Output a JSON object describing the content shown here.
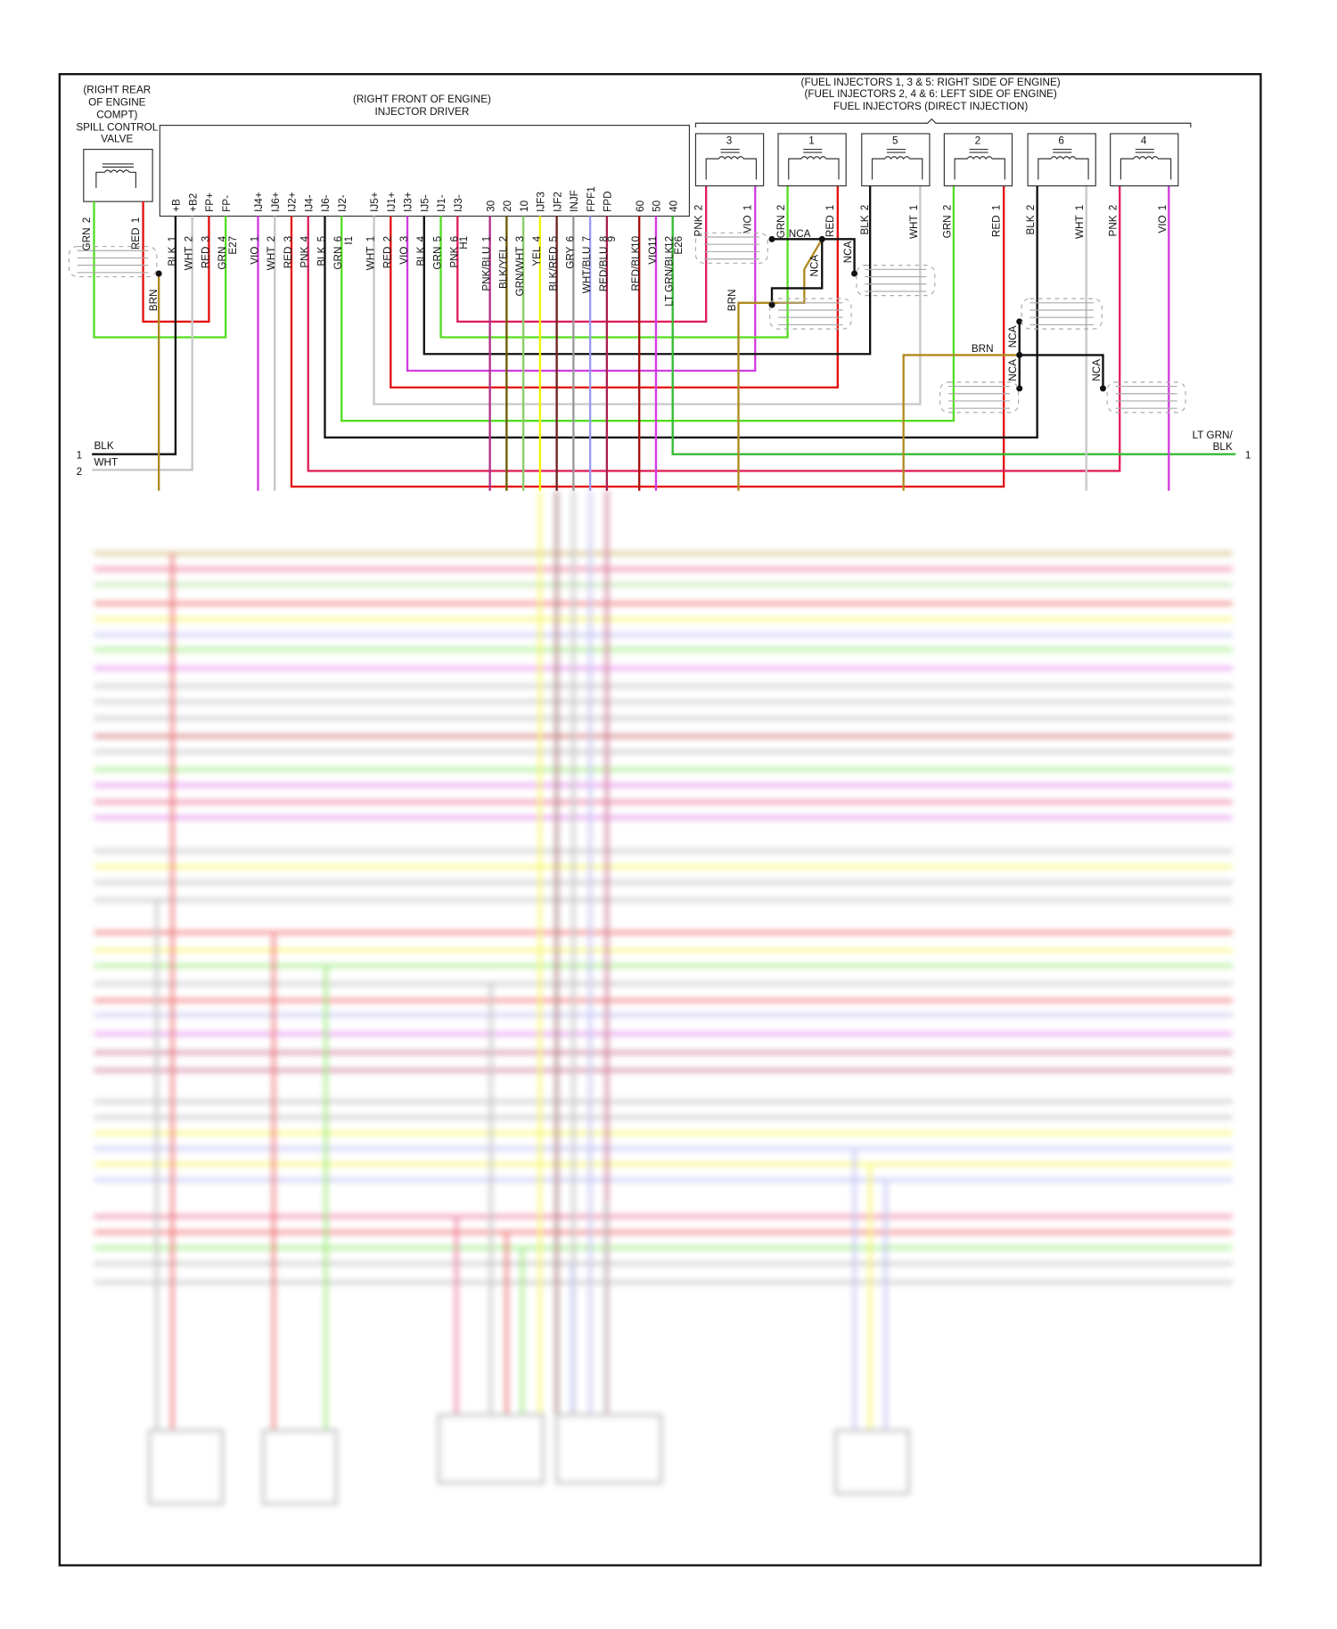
{
  "wire_colors": {
    "BLK": "#111111",
    "WHT": "#c8c8c8",
    "RED": "#e41010",
    "GRN": "#55dd22",
    "VIO": "#d23ce0",
    "PNK": "#e0205a",
    "BRN": "#b08a20",
    "YEL": "#f2f200",
    "LTGRNBLK": "#33bb33",
    "PNKBLU": "#b0308a",
    "BLKYEL": "#6b5a00",
    "GRNWHT": "#88cc66",
    "BLKRED": "#702020",
    "GRY": "#999999",
    "WHTBLU": "#9999ee",
    "REDBLU": "#aa2050",
    "REDBLK": "#aa1010"
  },
  "spill_valve": {
    "title": [
      "(RIGHT REAR",
      "OF ENGINE",
      "COMPT)",
      "SPILL CONTROL",
      "VALVE"
    ],
    "wires": [
      {
        "color": "GRN",
        "pin": "2"
      },
      {
        "color": "RED",
        "pin": "1"
      }
    ],
    "drain": "BRN"
  },
  "injector_driver": {
    "title": [
      "(RIGHT FRONT OF ENGINE)",
      "INJECTOR DRIVER"
    ],
    "pins": [
      "+B",
      "+B2",
      "FP+",
      "FP-",
      "IJ4+",
      "IJ6+",
      "IJ2+",
      "IJ4-",
      "IJ6-",
      "IJ2-",
      "IJ5+",
      "IJ1+",
      "IJ3+",
      "IJ5-",
      "IJ1-",
      "IJ3-",
      "30",
      "20",
      "10",
      "IJF3",
      "IJF2",
      "INJF",
      "FPF1",
      "FPD",
      "60",
      "50",
      "40"
    ],
    "wires": [
      {
        "color": "BLK",
        "pin": "1"
      },
      {
        "color": "WHT",
        "pin": "2"
      },
      {
        "color": "RED",
        "pin": "3"
      },
      {
        "color": "GRN",
        "pin": "4"
      },
      {
        "color": "",
        "pin": "E27"
      },
      {
        "color": "VIO",
        "pin": "1"
      },
      {
        "color": "WHT",
        "pin": "2"
      },
      {
        "color": "RED",
        "pin": "3"
      },
      {
        "color": "PNK",
        "pin": "4"
      },
      {
        "color": "BLK",
        "pin": "5"
      },
      {
        "color": "GRN",
        "pin": "6"
      },
      {
        "color": "",
        "pin": "I1"
      },
      {
        "color": "WHT",
        "pin": "1"
      },
      {
        "color": "RED",
        "pin": "2"
      },
      {
        "color": "VIO",
        "pin": "3"
      },
      {
        "color": "BLK",
        "pin": "4"
      },
      {
        "color": "GRN",
        "pin": "5"
      },
      {
        "color": "PNK",
        "pin": "6"
      },
      {
        "color": "",
        "pin": "H1"
      },
      {
        "color": "PNK/BLU",
        "pin": "1"
      },
      {
        "color": "BLK/YEL",
        "pin": "2"
      },
      {
        "color": "GRN/WHT",
        "pin": "3"
      },
      {
        "color": "YEL",
        "pin": "4"
      },
      {
        "color": "BLK/RED",
        "pin": "5"
      },
      {
        "color": "GRY",
        "pin": "6"
      },
      {
        "color": "WHT/BLU",
        "pin": "7"
      },
      {
        "color": "RED/BLU",
        "pin": "8"
      },
      {
        "color": "",
        "pin": "9"
      },
      {
        "color": "RED/BLK",
        "pin": "10"
      },
      {
        "color": "VIO",
        "pin": "11"
      },
      {
        "color": "LT GRN/BLK",
        "pin": "12"
      },
      {
        "color": "",
        "pin": "E26"
      }
    ]
  },
  "fuel_injectors": {
    "title": [
      "(FUEL INJECTORS 1, 3 & 5: RIGHT SIDE OF ENGINE)",
      "(FUEL INJECTORS 2, 4 & 6: LEFT SIDE OF ENGINE)",
      "FUEL INJECTORS (DIRECT INJECTION)"
    ],
    "units": [
      {
        "number": "3",
        "wires": [
          {
            "color": "PNK",
            "pin": "2"
          },
          {
            "color": "VIO",
            "pin": "1"
          }
        ]
      },
      {
        "number": "1",
        "wires": [
          {
            "color": "GRN",
            "pin": "2"
          },
          {
            "color": "RED",
            "pin": "1"
          }
        ]
      },
      {
        "number": "5",
        "wires": [
          {
            "color": "BLK",
            "pin": "2"
          },
          {
            "color": "WHT",
            "pin": "1"
          }
        ]
      },
      {
        "number": "2",
        "wires": [
          {
            "color": "GRN",
            "pin": "2"
          },
          {
            "color": "RED",
            "pin": "1"
          }
        ]
      },
      {
        "number": "6",
        "wires": [
          {
            "color": "BLK",
            "pin": "2"
          },
          {
            "color": "WHT",
            "pin": "1"
          }
        ]
      },
      {
        "number": "4",
        "wires": [
          {
            "color": "PNK",
            "pin": "2"
          },
          {
            "color": "VIO",
            "pin": "1"
          }
        ]
      }
    ]
  },
  "annotations": {
    "nca": "NCA",
    "brn": "BRN"
  },
  "left_connector": [
    {
      "pin": "1",
      "color": "BLK"
    },
    {
      "pin": "2",
      "color": "WHT"
    }
  ],
  "right_connector": {
    "pin": "1",
    "color_line1": "LT GRN/",
    "color_line2": "BLK"
  }
}
